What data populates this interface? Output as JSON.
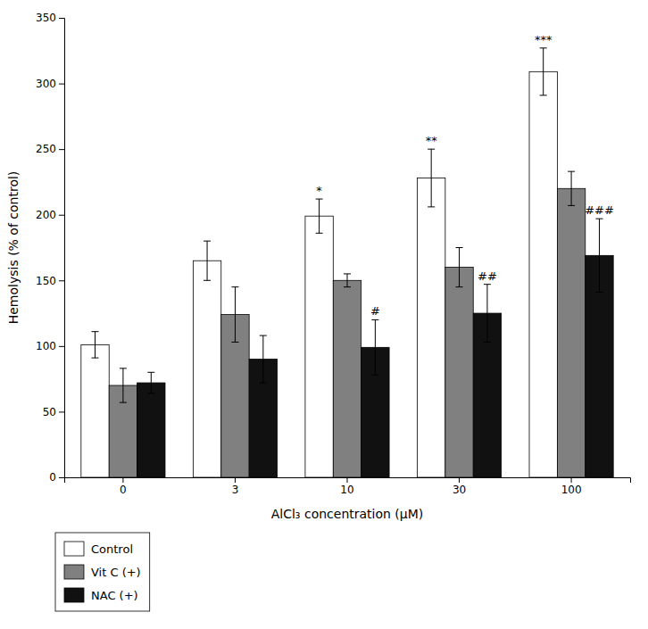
{
  "chart_data": {
    "type": "bar",
    "xlabel": "AlCl₃ concentration (μM)",
    "ylabel": "Hemolysis (% of control)",
    "categories": [
      "0",
      "3",
      "10",
      "30",
      "100"
    ],
    "series": [
      {
        "name": "Control",
        "color": "#ffffff",
        "values": [
          101,
          165,
          199,
          228,
          309
        ],
        "errors": [
          10,
          15,
          13,
          22,
          18
        ],
        "annotations": [
          null,
          null,
          "*",
          "**",
          "***"
        ]
      },
      {
        "name": "Vit C (+)",
        "color": "#808080",
        "values": [
          70,
          124,
          150,
          160,
          220
        ],
        "errors": [
          13,
          21,
          5,
          15,
          13
        ]
      },
      {
        "name": "NAC (+)",
        "color": "#111111",
        "values": [
          72,
          90,
          99,
          125,
          169
        ],
        "errors": [
          8,
          18,
          21,
          22,
          28
        ],
        "annotations": [
          null,
          null,
          "#",
          "##",
          "###"
        ]
      }
    ],
    "ylim": [
      0,
      350
    ],
    "yticks": [
      0,
      50,
      100,
      150,
      200,
      250,
      300,
      350
    ],
    "grid": false,
    "legend": "bottom"
  }
}
